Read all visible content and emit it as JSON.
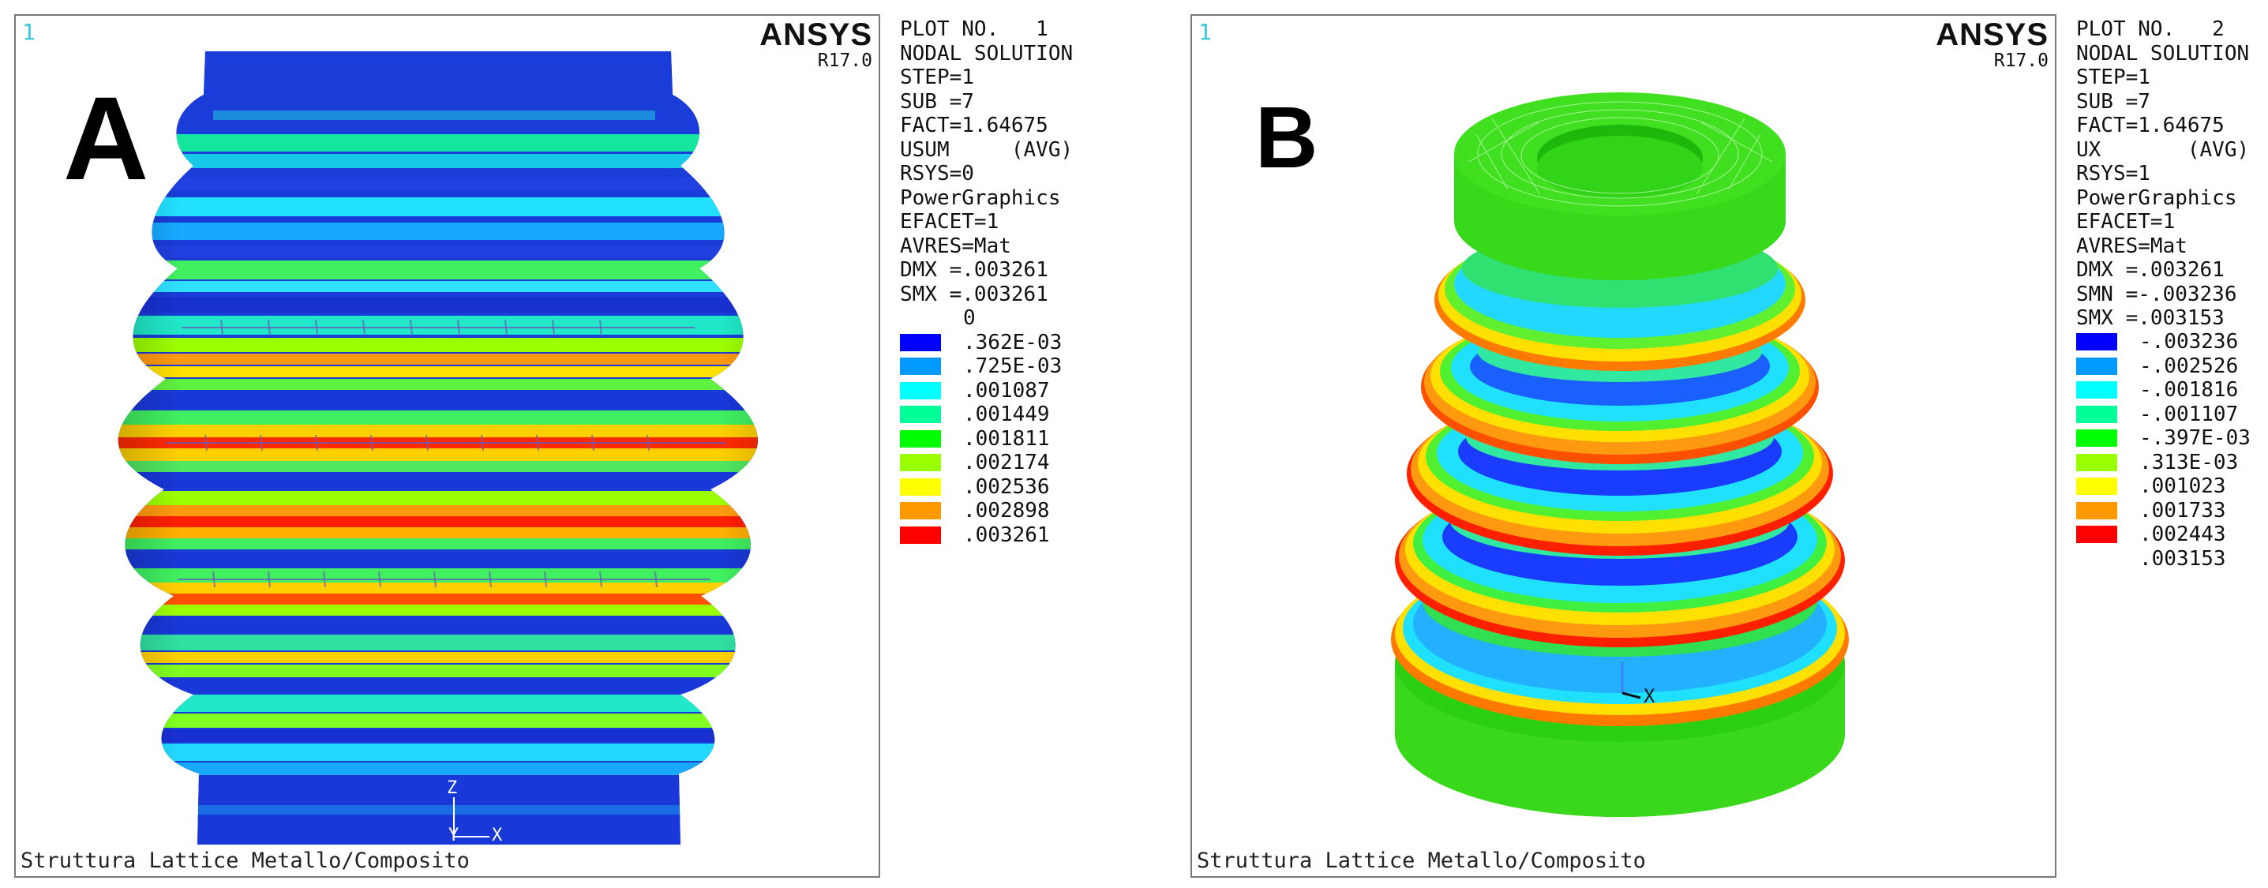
{
  "panels": [
    {
      "letter": "A",
      "window_number": "1",
      "brand": "ANSYS",
      "version": "R17.0",
      "caption": "Struttura Lattice Metallo/Composito",
      "info_lines": [
        "PLOT NO.   1",
        "NODAL SOLUTION",
        "STEP=1",
        "SUB =7",
        "FACT=1.64675",
        "USUM     (AVG)",
        "RSYS=0",
        "PowerGraphics",
        "EFACET=1",
        "AVRES=Mat",
        "DMX =.003261",
        "SMX =.003261"
      ],
      "legend_top_label": "0",
      "legend": [
        {
          "color": "#0000ff",
          "label": ".362E-03"
        },
        {
          "color": "#0099ff",
          "label": ".725E-03"
        },
        {
          "color": "#00ffff",
          "label": ".001087"
        },
        {
          "color": "#00ff99",
          "label": ".001449"
        },
        {
          "color": "#00ff00",
          "label": ".001811"
        },
        {
          "color": "#99ff00",
          "label": ".002174"
        },
        {
          "color": "#ffff00",
          "label": ".002536"
        },
        {
          "color": "#ff9900",
          "label": ".002898"
        },
        {
          "color": "#ff0000",
          "label": ".003261"
        }
      ],
      "axis_labels": [
        "Z",
        "Y",
        "X"
      ]
    },
    {
      "letter": "B",
      "window_number": "1",
      "brand": "ANSYS",
      "version": "R17.0",
      "caption": "Struttura Lattice Metallo/Composito",
      "info_lines": [
        "PLOT NO.   2",
        "NODAL SOLUTION",
        "STEP=1",
        "SUB =7",
        "FACT=1.64675",
        "UX       (AVG)",
        "RSYS=1",
        "PowerGraphics",
        "EFACET=1",
        "AVRES=Mat",
        "DMX =.003261",
        "SMN =-.003236",
        "SMX =.003153"
      ],
      "legend_top_label": "",
      "legend": [
        {
          "color": "#0000ff",
          "label": "-.003236"
        },
        {
          "color": "#0099ff",
          "label": "-.002526"
        },
        {
          "color": "#00ffff",
          "label": "-.001816"
        },
        {
          "color": "#00ff99",
          "label": "-.001107"
        },
        {
          "color": "#00ff00",
          "label": "-.397E-03"
        },
        {
          "color": "#99ff00",
          "label": ".313E-03"
        },
        {
          "color": "#ffff00",
          "label": ".001023"
        },
        {
          "color": "#ff9900",
          "label": ".001733"
        },
        {
          "color": "#ff0000",
          "label": ".002443"
        },
        {
          "color": "#ffffff",
          "label": ".003153"
        }
      ],
      "axis_labels": [
        "X"
      ]
    }
  ]
}
